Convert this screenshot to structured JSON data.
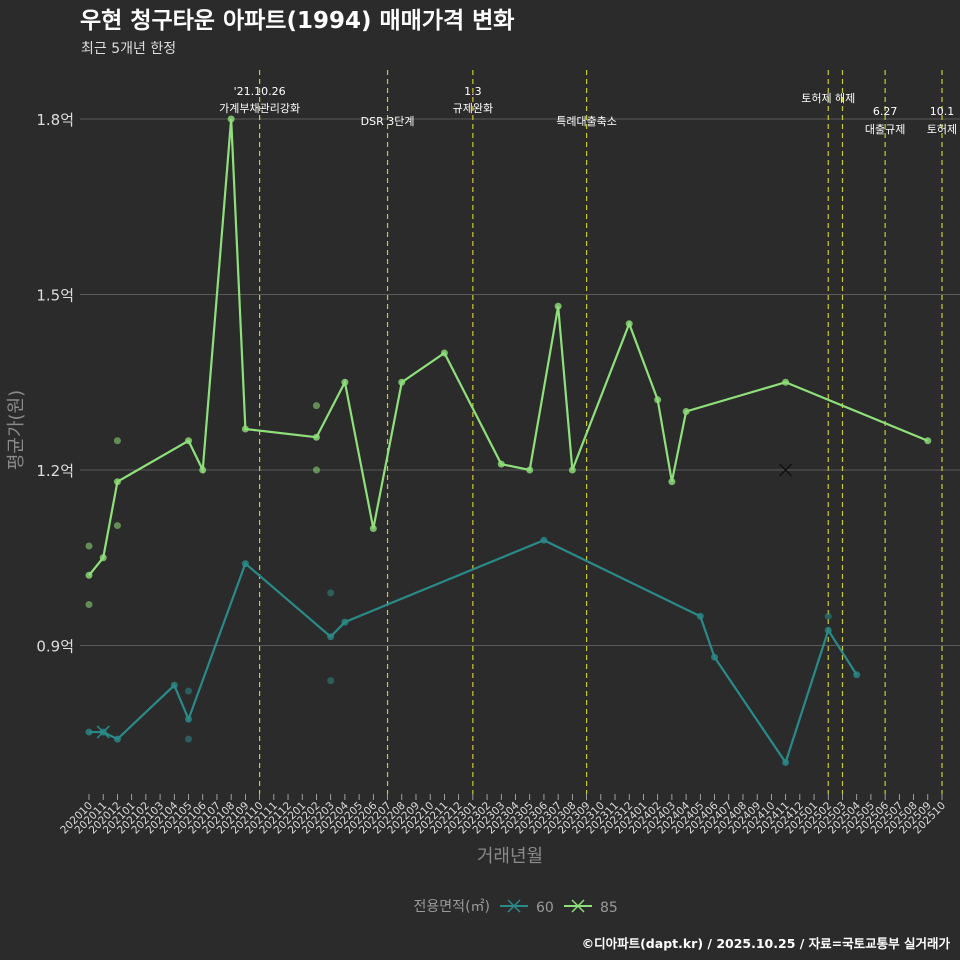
{
  "chart_data": {
    "type": "line",
    "title": "우현 청구타운 아파트(1994) 매매가격 변화",
    "subtitle": "최근 5개년 한정",
    "xlabel": "거래년월",
    "ylabel": "평균가(원)",
    "caption": "©디아파트(dapt.kr) / 2025.10.25 / 자료=국토교통부 실거래가",
    "legend": {
      "title": "전용면적(㎡)",
      "position": "bottom",
      "entries": [
        "60",
        "85"
      ]
    },
    "x_categories": [
      "202010",
      "202011",
      "202012",
      "202101",
      "202102",
      "202103",
      "202104",
      "202105",
      "202106",
      "202107",
      "202108",
      "202109",
      "202110",
      "202111",
      "202112",
      "202201",
      "202202",
      "202203",
      "202204",
      "202205",
      "202206",
      "202207",
      "202208",
      "202209",
      "202210",
      "202211",
      "202212",
      "202301",
      "202302",
      "202303",
      "202304",
      "202305",
      "202306",
      "202307",
      "202308",
      "202309",
      "202310",
      "202311",
      "202312",
      "202401",
      "202402",
      "202403",
      "202404",
      "202405",
      "202406",
      "202407",
      "202408",
      "202409",
      "202410",
      "202411",
      "202412",
      "202501",
      "202502",
      "202503",
      "202504",
      "202505",
      "202506",
      "202507",
      "202508",
      "202509",
      "202510"
    ],
    "y_ticks": [
      {
        "value": 0.9,
        "label": "0.9억"
      },
      {
        "value": 1.2,
        "label": "1.2억"
      },
      {
        "value": 1.5,
        "label": "1.5억"
      },
      {
        "value": 1.8,
        "label": "1.8억"
      }
    ],
    "ylim": [
      0.66,
      1.92
    ],
    "series": [
      {
        "name": "60",
        "color": "#2a8a87",
        "line": [
          [
            "202010",
            0.752
          ],
          [
            "202011",
            0.752
          ],
          [
            "202012",
            0.74
          ],
          [
            "202104",
            0.832
          ],
          [
            "202105",
            0.774
          ],
          [
            "202109",
            1.04
          ],
          [
            "202203",
            0.915
          ],
          [
            "202204",
            0.94
          ],
          [
            "202306",
            1.08
          ],
          [
            "202405",
            0.95
          ],
          [
            "202406",
            0.88
          ],
          [
            "202411",
            0.7
          ],
          [
            "202502",
            0.926
          ],
          [
            "202504",
            0.85
          ]
        ],
        "points": [
          [
            "202105",
            0.822
          ],
          [
            "202105",
            0.74
          ],
          [
            "202203",
            0.99
          ],
          [
            "202203",
            0.84
          ],
          [
            "202502",
            0.95
          ]
        ],
        "cross": [
          [
            "202011",
            0.752
          ]
        ]
      },
      {
        "name": "85",
        "color": "#8fe07a",
        "line": [
          [
            "202010",
            1.02
          ],
          [
            "202011",
            1.05
          ],
          [
            "202012",
            1.18
          ],
          [
            "202105",
            1.25
          ],
          [
            "202106",
            1.2
          ],
          [
            "202108",
            1.8
          ],
          [
            "202109",
            1.27
          ],
          [
            "202202",
            1.256
          ],
          [
            "202204",
            1.35
          ],
          [
            "202206",
            1.1
          ],
          [
            "202208",
            1.35
          ],
          [
            "202211",
            1.4
          ],
          [
            "202303",
            1.21
          ],
          [
            "202305",
            1.2
          ],
          [
            "202307",
            1.48
          ],
          [
            "202308",
            1.2
          ],
          [
            "202312",
            1.45
          ],
          [
            "202402",
            1.32
          ],
          [
            "202403",
            1.18
          ],
          [
            "202404",
            1.3
          ],
          [
            "202411",
            1.35
          ],
          [
            "202509",
            1.25
          ]
        ],
        "points": [
          [
            "202010",
            1.07
          ],
          [
            "202010",
            0.97
          ],
          [
            "202012",
            1.25
          ],
          [
            "202012",
            1.105
          ],
          [
            "202202",
            1.31
          ],
          [
            "202202",
            1.2
          ]
        ],
        "cross": [
          [
            "202411",
            1.2
          ]
        ]
      }
    ],
    "events": [
      {
        "month": "202110",
        "lines": [
          "'21.10.26",
          "가계부채관리강화"
        ]
      },
      {
        "month": "202207",
        "lines": [
          "DSR 3단계"
        ]
      },
      {
        "month": "202301",
        "lines": [
          "1.3",
          "규제완화"
        ]
      },
      {
        "month": "202309",
        "lines": [
          "특례대출축소"
        ]
      },
      {
        "month": "202502",
        "lines": [
          "토허제 해제"
        ]
      },
      {
        "month": "202503",
        "lines": []
      },
      {
        "month": "202506",
        "lines": [
          "6.27",
          "대출규제"
        ]
      },
      {
        "month": "202510",
        "lines": [
          "10.1",
          "토허제"
        ]
      }
    ]
  }
}
